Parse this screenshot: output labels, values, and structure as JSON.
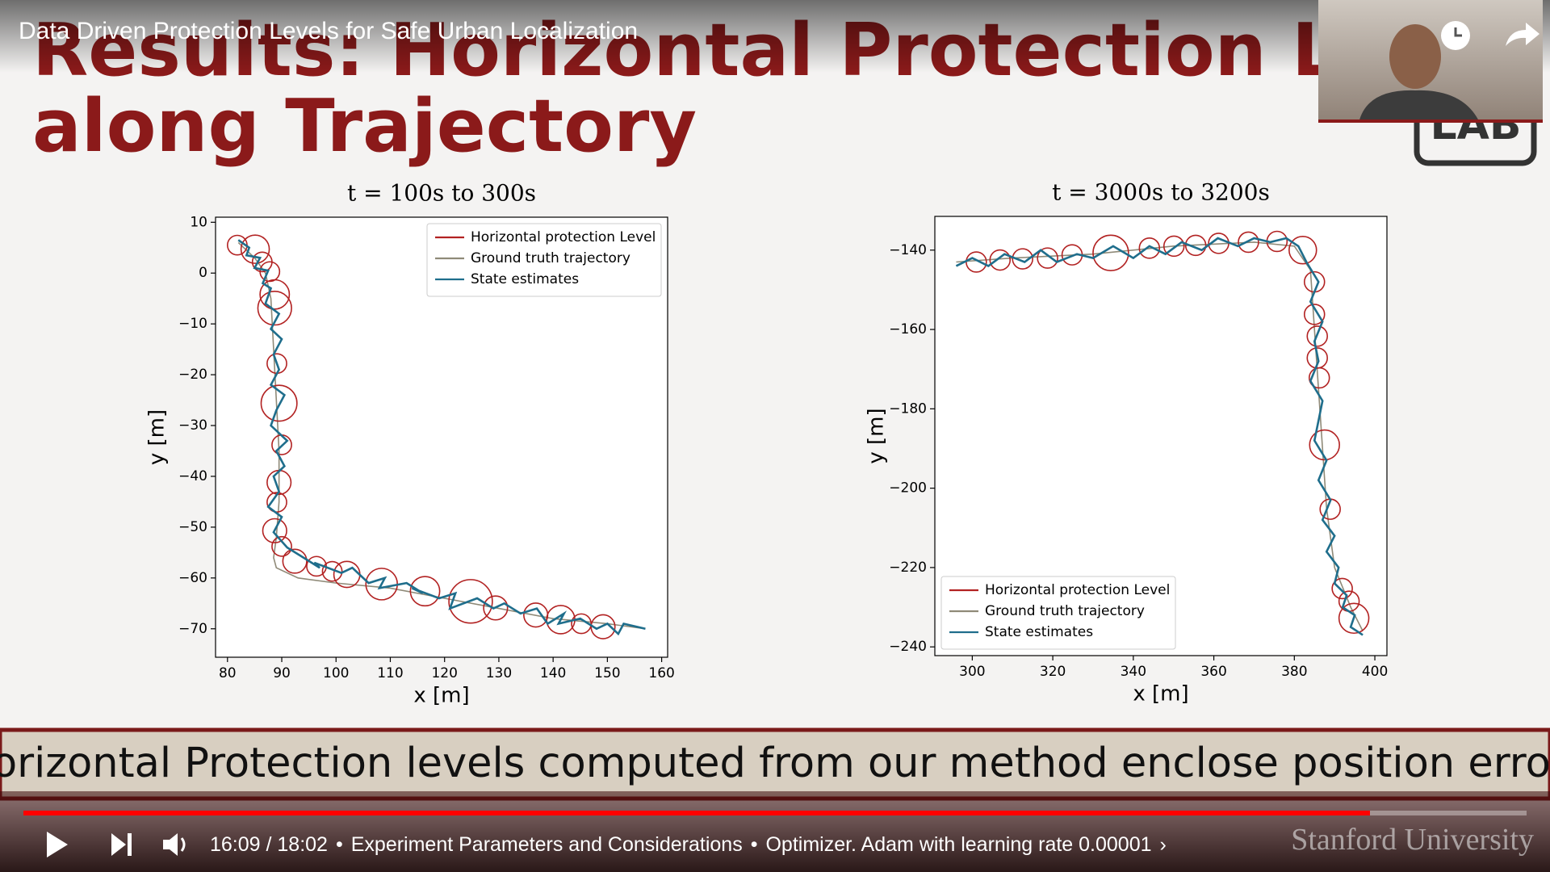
{
  "video": {
    "title": "Data Driven Protection Levels for Safe Urban Localization",
    "time": "16:09 / 18:02",
    "separator": "•",
    "chapter": "Experiment Parameters and Considerations",
    "description": "Optimizer. Adam with learning rate 0.00001",
    "more": "›",
    "watermark": "Stanford University"
  },
  "slide": {
    "title_line1": "Results: Horizontal Protection Level",
    "title_line2": "along Trajectory",
    "logo": "LAB",
    "caption": "Horizontal Protection levels computed from our method enclose position errors"
  },
  "chart_data": [
    {
      "type": "trajectory",
      "title": "t = 100s to 300s",
      "xlabel": "x [m]",
      "ylabel": "y [m]",
      "xlim": [
        77.8,
        161.1
      ],
      "ylim": [
        -75.6,
        11
      ],
      "xticks": [
        80,
        90,
        100,
        110,
        120,
        130,
        140,
        150,
        160
      ],
      "yticks": [
        10,
        0,
        {
          "value": -10,
          "label": "−10"
        },
        {
          "value": -20,
          "label": "−20"
        },
        {
          "value": -30,
          "label": "−30"
        },
        {
          "value": -40,
          "label": "−40"
        },
        {
          "value": -50,
          "label": "−50"
        },
        {
          "value": -60,
          "label": "−60"
        },
        {
          "value": -70,
          "label": "−70"
        }
      ],
      "legend": "upper right",
      "series": [
        {
          "name": "Horizontal protection Level",
          "color": "#b22222",
          "x": [
            81.8,
            85.1,
            86.4,
            87.8,
            88.7,
            88.7,
            89.1,
            89.5,
            90.0,
            89.5,
            89.1,
            88.7,
            90.0,
            92.4,
            96.4,
            99.3,
            102.0,
            108.4,
            116.4,
            124.8,
            129.4,
            136.8,
            141.4,
            145.2,
            149.2
          ],
          "values": [
            5.5,
            4.7,
            2.2,
            0.3,
            -4.2,
            -6.9,
            -17.8,
            -25.6,
            -33.8,
            -41.2,
            -45.1,
            -50.7,
            -53.8,
            -56.7,
            -57.7,
            -58.7,
            -59.3,
            -61.2,
            -62.6,
            -64.6,
            -65.9,
            -67.3,
            -68.2,
            -69.0,
            -69.6
          ],
          "radius": [
            1.8,
            2.6,
            1.8,
            1.8,
            2.7,
            3.1,
            1.8,
            3.3,
            1.8,
            2.2,
            1.8,
            2.2,
            1.8,
            2.2,
            1.8,
            1.8,
            2.4,
            2.9,
            2.7,
            4.0,
            2.2,
            2.2,
            2.6,
            1.8,
            2.2
          ]
        },
        {
          "name": "Ground truth trajectory",
          "color": "#8f8a78",
          "x": [
            82,
            85,
            87,
            88,
            88.5,
            89,
            89.5,
            89.5,
            89,
            88.5,
            89,
            93,
            100,
            110,
            120,
            130,
            140,
            150,
            157
          ],
          "values": [
            6,
            3,
            0,
            -5,
            -15,
            -25,
            -35,
            -45,
            -52,
            -56,
            -58,
            -60,
            -61,
            -62,
            -64,
            -66,
            -68,
            -69,
            -70
          ]
        },
        {
          "name": "State estimates",
          "color": "#1f6e8c",
          "x": [
            82,
            84,
            83.5,
            86,
            85,
            87.5,
            86.5,
            88,
            87,
            89.5,
            88,
            90,
            88.5,
            89.5,
            88,
            90.5,
            89,
            88,
            91,
            89,
            90.5,
            88.5,
            89.5,
            87.5,
            90,
            88.5,
            91,
            94,
            97,
            96,
            101,
            103,
            106,
            109,
            108,
            113,
            116,
            114,
            119,
            122,
            121,
            126,
            129,
            131,
            134,
            137,
            139,
            142,
            141,
            145,
            148,
            150,
            152,
            153,
            157
          ],
          "values": [
            6.5,
            5,
            3.5,
            3,
            1,
            0.5,
            -2,
            -3,
            -6,
            -8,
            -11,
            -13,
            -16,
            -19,
            -22,
            -24,
            -27,
            -30,
            -33,
            -35,
            -38,
            -40,
            -43,
            -46,
            -48,
            -51,
            -54,
            -56,
            -58,
            -57,
            -59,
            -58,
            -61,
            -60,
            -62,
            -61,
            -63,
            -62,
            -64,
            -63,
            -66,
            -64,
            -66,
            -65,
            -67,
            -66,
            -69,
            -67,
            -69,
            -68,
            -70,
            -69,
            -71,
            -69,
            -70
          ]
        }
      ]
    },
    {
      "type": "trajectory",
      "title": "t = 3000s to 3200s",
      "xlabel": "x [m]",
      "ylabel": "y [m]",
      "xlim": [
        290.7,
        403
      ],
      "ylim": [
        -242.2,
        -131.5
      ],
      "xticks": [
        300,
        320,
        340,
        360,
        380,
        400
      ],
      "yticks": [
        {
          "value": -140,
          "label": "−140"
        },
        {
          "value": -160,
          "label": "−160"
        },
        {
          "value": -180,
          "label": "−180"
        },
        {
          "value": -200,
          "label": "−200"
        },
        {
          "value": -220,
          "label": "−220"
        },
        {
          "value": -240,
          "label": "−240"
        }
      ],
      "legend": "lower left",
      "series": [
        {
          "name": "Horizontal protection Level",
          "color": "#b22222",
          "x": [
            301.0,
            306.9,
            312.5,
            318.7,
            324.8,
            334.4,
            344.0,
            350.1,
            355.5,
            361.2,
            368.6,
            375.7,
            382.1,
            385.0,
            385.0,
            385.7,
            385.7,
            386.2,
            387.5,
            388.9,
            391.9,
            393.6,
            394.8
          ],
          "values": [
            -143.0,
            -142.5,
            -142.2,
            -142.0,
            -141.2,
            -140.7,
            -139.5,
            -139.0,
            -138.8,
            -138.3,
            -138.0,
            -137.8,
            -140.0,
            -148.0,
            -156.2,
            -161.7,
            -167.2,
            -172.2,
            -189.1,
            -205.3,
            -225.3,
            -228.5,
            -232.8
          ],
          "radius": [
            2.5,
            2.5,
            2.5,
            2.5,
            2.5,
            4.4,
            2.5,
            2.5,
            2.5,
            2.5,
            2.5,
            2.5,
            3.4,
            2.5,
            2.5,
            2.5,
            2.5,
            2.5,
            3.7,
            2.5,
            2.5,
            2.5,
            3.7
          ]
        },
        {
          "name": "Ground truth trajectory",
          "color": "#8f8a78",
          "x": [
            296,
            310,
            330,
            350,
            370,
            380,
            384,
            385,
            386,
            387,
            388,
            390,
            394,
            397
          ],
          "values": [
            -143,
            -142,
            -141,
            -139,
            -138,
            -139,
            -145,
            -160,
            -175,
            -190,
            -205,
            -220,
            -230,
            -236
          ]
        },
        {
          "name": "State estimates",
          "color": "#1f6e8c",
          "x": [
            296,
            300,
            304,
            308,
            313,
            317,
            321,
            326,
            330,
            335,
            340,
            344,
            348,
            352,
            357,
            361,
            366,
            370,
            374,
            378,
            381,
            383,
            386,
            384,
            387,
            385,
            386,
            384,
            387,
            386,
            385,
            388,
            386,
            389,
            387,
            390,
            388,
            391,
            390,
            393,
            392,
            395,
            394,
            397
          ],
          "values": [
            -144,
            -142,
            -144,
            -141,
            -143,
            -140,
            -143,
            -141,
            -142,
            -139,
            -142,
            -139,
            -141,
            -138,
            -140,
            -137,
            -139,
            -137,
            -138,
            -137,
            -139,
            -143,
            -148,
            -153,
            -158,
            -163,
            -168,
            -173,
            -178,
            -183,
            -188,
            -193,
            -198,
            -203,
            -208,
            -212,
            -216,
            -220,
            -224,
            -227,
            -230,
            -232,
            -235,
            -237
          ]
        }
      ]
    }
  ]
}
